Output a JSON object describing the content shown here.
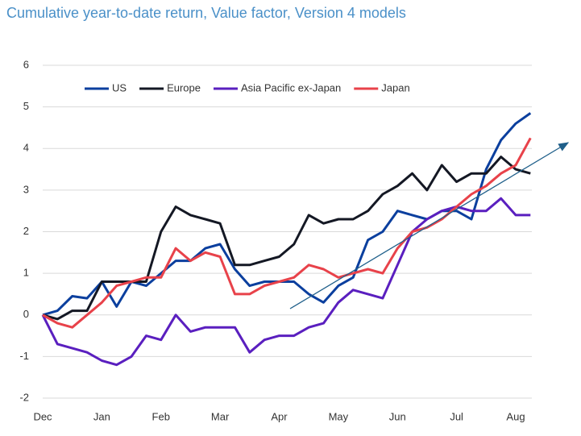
{
  "chart_data": {
    "type": "line",
    "title": "Cumulative year-to-date return, Value factor, Version 4 models",
    "categories": [
      "Dec",
      null,
      null,
      null,
      "Jan",
      null,
      null,
      null,
      "Feb",
      null,
      null,
      null,
      "Mar",
      null,
      null,
      null,
      "Apr",
      null,
      null,
      null,
      "May",
      null,
      null,
      null,
      "Jun",
      null,
      null,
      null,
      "Jul",
      null,
      null,
      null,
      "Aug",
      null
    ],
    "series": [
      {
        "name": "US",
        "color": "#0b3f9e",
        "values": [
          0,
          0.1,
          0.45,
          0.4,
          0.8,
          0.2,
          0.8,
          0.7,
          1.0,
          1.3,
          1.3,
          1.6,
          1.7,
          1.1,
          0.7,
          0.8,
          0.8,
          0.8,
          0.5,
          0.3,
          0.7,
          0.9,
          1.8,
          2.0,
          2.5,
          2.4,
          2.3,
          2.5,
          2.5,
          2.3,
          3.5,
          4.2,
          4.6,
          4.85
        ]
      },
      {
        "name": "Europe",
        "color": "#141824",
        "values": [
          0,
          -0.1,
          0.1,
          0.1,
          0.8,
          0.8,
          0.8,
          0.8,
          2.0,
          2.6,
          2.4,
          2.3,
          2.2,
          1.2,
          1.2,
          1.3,
          1.4,
          1.7,
          2.4,
          2.2,
          2.3,
          2.3,
          2.5,
          2.9,
          3.1,
          3.4,
          3.0,
          3.6,
          3.2,
          3.4,
          3.4,
          3.8,
          3.5,
          3.4
        ]
      },
      {
        "name": "Asia Pacific ex-Japan",
        "color": "#5a1fbf",
        "values": [
          0,
          -0.7,
          -0.8,
          -0.9,
          -1.1,
          -1.2,
          -1.0,
          -0.5,
          -0.6,
          0.0,
          -0.4,
          -0.3,
          -0.3,
          -0.3,
          -0.9,
          -0.6,
          -0.5,
          -0.5,
          -0.3,
          -0.2,
          0.3,
          0.6,
          0.5,
          0.4,
          1.2,
          2.0,
          2.3,
          2.5,
          2.6,
          2.5,
          2.5,
          2.8,
          2.4,
          2.4
        ]
      },
      {
        "name": "Japan",
        "color": "#e8424a",
        "values": [
          0,
          -0.2,
          -0.3,
          0.0,
          0.3,
          0.7,
          0.8,
          0.9,
          0.9,
          1.6,
          1.3,
          1.5,
          1.4,
          0.5,
          0.5,
          0.7,
          0.8,
          0.9,
          1.2,
          1.1,
          0.9,
          1.0,
          1.1,
          1.0,
          1.6,
          2.0,
          2.1,
          2.3,
          2.6,
          2.9,
          3.1,
          3.4,
          3.6,
          4.25
        ]
      }
    ],
    "ylim": [
      -2,
      6
    ],
    "yticks": [
      -2,
      -1,
      0,
      1,
      2,
      3,
      4,
      5,
      6
    ],
    "grid": true,
    "legend": "top"
  }
}
